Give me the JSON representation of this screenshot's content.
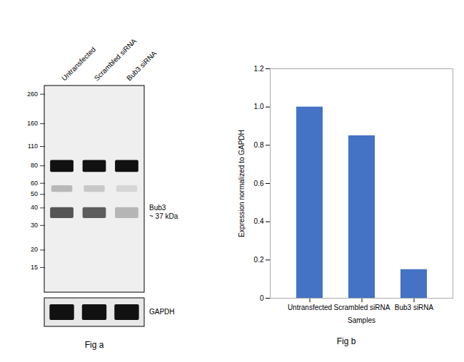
{
  "chart_data": [
    {
      "type": "blot",
      "title": "Fig a",
      "categories": [
        "Untransfected",
        "Scrambled siRNA",
        "Bub3 siRNA"
      ],
      "log": "y",
      "ylim": [
        10,
        300
      ],
      "yticks": [
        260,
        160,
        110,
        80,
        60,
        50,
        40,
        30,
        20,
        15
      ],
      "annotations": [
        "Bub3\n~ 37 kDa",
        "GAPDH"
      ]
    },
    {
      "type": "bar",
      "title": "Fig b",
      "categories": [
        "Untransfected",
        "Scrambled siRNA",
        "Bub3 siRNA"
      ],
      "values": [
        1.0,
        0.85,
        0.15
      ],
      "color": "#4472C4",
      "ylim": [
        0,
        1.2
      ],
      "yticks": [
        0,
        0.2,
        0.4,
        0.6,
        0.8,
        {
          "value": 1.0,
          "label": "1.0"
        },
        1.2
      ],
      "xlabel": "Samples",
      "ylabel": "Expression normalized to GAPDH"
    }
  ]
}
